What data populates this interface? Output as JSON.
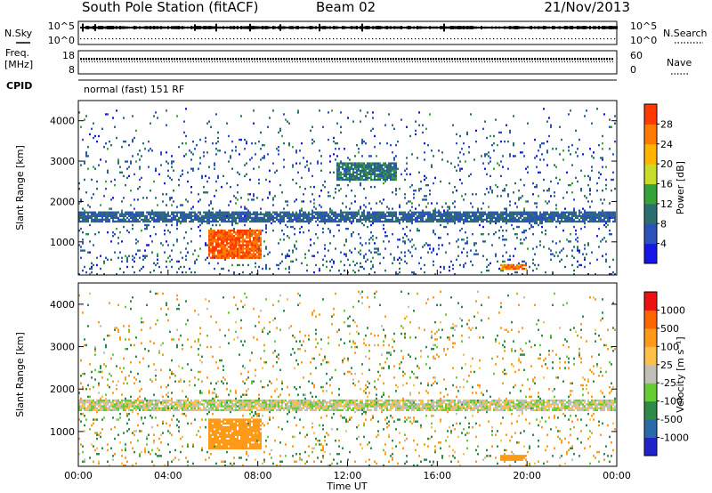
{
  "header": {
    "station": "South Pole Station (fitACF)",
    "beam": "Beam 02",
    "date": "21/Nov/2013"
  },
  "panels": {
    "nsky": {
      "label": "N.Sky",
      "ticks": [
        "10^5",
        "10^0"
      ],
      "right_label": "N.Search",
      "right_ticks": [
        "10^5",
        "10^0"
      ]
    },
    "freq": {
      "label_line1": "Freq.",
      "label_line2": "[MHz]",
      "ticks": [
        "18",
        "8"
      ],
      "right_label": "Nave",
      "right_ticks": [
        "60",
        "0"
      ]
    },
    "cpid": {
      "label": "CPID",
      "value": "normal (fast) 151 RF"
    }
  },
  "colors": {
    "power_scale": [
      "#1515e6",
      "#2a52b8",
      "#2c6e6e",
      "#35a23a",
      "#c8dc28",
      "#ffb400",
      "#ff7a00",
      "#ff3a00",
      "#e60000"
    ],
    "velocity_scale": [
      "#2222cc",
      "#2a6aa6",
      "#2d8a4a",
      "#66cc33",
      "#c0c0b8",
      "#ffc04a",
      "#ff9a18",
      "#ff6600",
      "#ee1111"
    ]
  },
  "chart_data": [
    {
      "type": "heatmap",
      "title": "Power",
      "xlabel": "Time UT",
      "ylabel": "Slant Range [km]",
      "x_ticks": [
        "00:00",
        "04:00",
        "08:00",
        "12:00",
        "16:00",
        "20:00",
        "00:00"
      ],
      "x_range_hours": [
        0,
        24
      ],
      "ylim": [
        180,
        4500
      ],
      "y_ticks": [
        1000,
        2000,
        3000,
        4000
      ],
      "colorbar": {
        "label": "Power [dB]",
        "range": [
          0,
          32
        ],
        "ticks": [
          "4",
          "8",
          "12",
          "16",
          "20",
          "24",
          "28"
        ]
      },
      "features": [
        {
          "name": "band 1500-1700 km",
          "time_hours": [
            0,
            24
          ],
          "range_km": [
            1480,
            1720
          ],
          "value_db": 8
        },
        {
          "name": "strong echo",
          "time_hours": [
            5.8,
            8.2
          ],
          "range_km": [
            550,
            1300
          ],
          "value_db": 28
        },
        {
          "name": "patch",
          "time_hours": [
            18.8,
            20.0
          ],
          "range_km": [
            280,
            420
          ],
          "value_db": 26
        },
        {
          "name": "upper echoes",
          "time_hours": [
            11.5,
            14.2
          ],
          "range_km": [
            2500,
            2950
          ],
          "value_db": 10
        }
      ]
    },
    {
      "type": "heatmap",
      "title": "Velocity",
      "xlabel": "Time UT",
      "ylabel": "Slant Range [km]",
      "x_ticks": [
        "00:00",
        "04:00",
        "08:00",
        "12:00",
        "16:00",
        "20:00",
        "00:00"
      ],
      "x_range_hours": [
        0,
        24
      ],
      "ylim": [
        180,
        4500
      ],
      "y_ticks": [
        1000,
        2000,
        3000,
        4000
      ],
      "colorbar": {
        "label": "Velocity [m s⁻¹]",
        "bounds": [
          1000,
          500,
          100,
          25,
          -25,
          -100,
          -500,
          -1000
        ],
        "ticks": [
          "1000",
          "500",
          "100",
          "25",
          "-25",
          "-100",
          "-500",
          "-1000"
        ]
      },
      "features": [
        {
          "name": "band 1500-1700 km",
          "time_hours": [
            0,
            24
          ],
          "range_km": [
            1480,
            1720
          ],
          "value_ms": 0
        },
        {
          "name": "strong echo",
          "time_hours": [
            5.8,
            8.2
          ],
          "range_km": [
            550,
            1300
          ],
          "value_ms": -300
        },
        {
          "name": "patch",
          "time_hours": [
            18.8,
            20.0
          ],
          "range_km": [
            280,
            420
          ],
          "value_ms": -200
        }
      ]
    }
  ]
}
